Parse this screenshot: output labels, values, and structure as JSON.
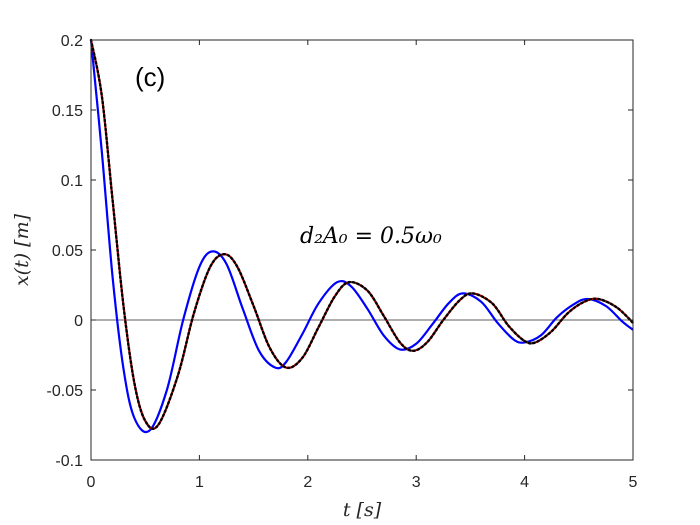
{
  "chart_data": {
    "type": "line",
    "panel_label": "(c)",
    "annotation": "d₂A₀ = 0.5ω₀",
    "xlabel": "t [s]",
    "ylabel": "x(t) [m]",
    "xlim": [
      0,
      5
    ],
    "ylim": [
      -0.1,
      0.2
    ],
    "xticks": [
      0,
      1,
      2,
      3,
      4,
      5
    ],
    "xtick_labels": [
      "0",
      "1",
      "2",
      "3",
      "4",
      "5"
    ],
    "yticks": [
      -0.1,
      -0.05,
      0,
      0.05,
      0.1,
      0.15,
      0.2
    ],
    "ytick_labels": [
      "-0.1",
      "-0.05",
      "0",
      "0.05",
      "0.1",
      "0.15",
      "0.2"
    ],
    "grid": false,
    "zero_line": true,
    "series": [
      {
        "color": "#0000ff",
        "style": "solid",
        "x": [
          0,
          0.1,
          0.2,
          0.3,
          0.4,
          0.54,
          0.7,
          0.85,
          1.0,
          1.12,
          1.25,
          1.4,
          1.55,
          1.7,
          1.8,
          1.95,
          2.1,
          2.27,
          2.4,
          2.55,
          2.7,
          2.85,
          3.0,
          3.15,
          3.3,
          3.43,
          3.6,
          3.75,
          3.9,
          4.0,
          4.15,
          4.3,
          4.45,
          4.58,
          4.75,
          4.9,
          5.0
        ],
        "y": [
          0.2,
          0.12,
          0.03,
          -0.035,
          -0.07,
          -0.079,
          -0.05,
          0.0,
          0.038,
          0.049,
          0.04,
          0.008,
          -0.022,
          -0.034,
          -0.03,
          -0.01,
          0.012,
          0.027,
          0.024,
          0.008,
          -0.011,
          -0.021,
          -0.017,
          -0.003,
          0.012,
          0.019,
          0.013,
          -0.002,
          -0.014,
          -0.016,
          -0.011,
          0.002,
          0.011,
          0.015,
          0.01,
          -0.001,
          -0.007
        ]
      },
      {
        "color": "#cc0000",
        "style": "solid",
        "x": [
          0,
          0.1,
          0.2,
          0.3,
          0.4,
          0.5,
          0.62,
          0.8,
          0.95,
          1.1,
          1.23,
          1.35,
          1.5,
          1.65,
          1.8,
          1.95,
          2.1,
          2.25,
          2.38,
          2.55,
          2.7,
          2.85,
          2.97,
          3.1,
          3.25,
          3.4,
          3.52,
          3.7,
          3.85,
          4.0,
          4.1,
          4.25,
          4.4,
          4.55,
          4.68,
          4.85,
          5.0
        ],
        "y": [
          0.2,
          0.16,
          0.085,
          0.01,
          -0.045,
          -0.072,
          -0.075,
          -0.04,
          0.005,
          0.038,
          0.047,
          0.038,
          0.01,
          -0.02,
          -0.034,
          -0.027,
          -0.005,
          0.017,
          0.027,
          0.021,
          0.003,
          -0.016,
          -0.022,
          -0.016,
          0.0,
          0.014,
          0.019,
          0.012,
          -0.004,
          -0.015,
          -0.016,
          -0.008,
          0.005,
          0.013,
          0.015,
          0.009,
          -0.002
        ]
      },
      {
        "color": "#000000",
        "style": "dotted",
        "x": [
          0,
          0.1,
          0.2,
          0.3,
          0.4,
          0.5,
          0.62,
          0.8,
          0.95,
          1.1,
          1.23,
          1.35,
          1.5,
          1.65,
          1.8,
          1.95,
          2.1,
          2.25,
          2.38,
          2.55,
          2.7,
          2.85,
          2.97,
          3.1,
          3.25,
          3.4,
          3.52,
          3.7,
          3.85,
          4.0,
          4.1,
          4.25,
          4.4,
          4.55,
          4.68,
          4.85,
          5.0
        ],
        "y": [
          0.2,
          0.16,
          0.085,
          0.01,
          -0.045,
          -0.072,
          -0.075,
          -0.04,
          0.005,
          0.038,
          0.047,
          0.038,
          0.01,
          -0.02,
          -0.034,
          -0.027,
          -0.005,
          0.017,
          0.027,
          0.021,
          0.003,
          -0.016,
          -0.022,
          -0.016,
          0.0,
          0.014,
          0.019,
          0.012,
          -0.004,
          -0.015,
          -0.016,
          -0.008,
          0.005,
          0.013,
          0.015,
          0.009,
          -0.002
        ]
      }
    ]
  }
}
